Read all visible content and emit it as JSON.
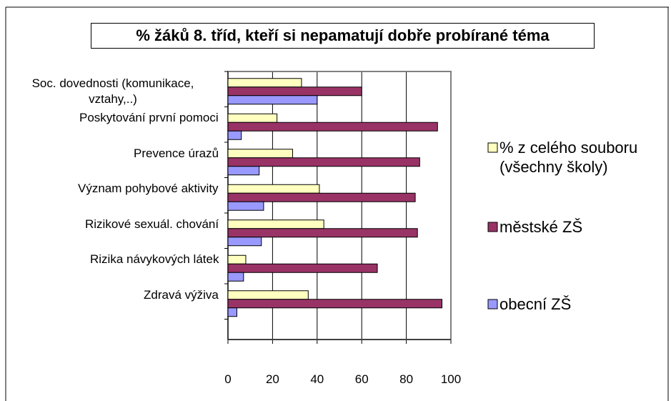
{
  "chart_data": {
    "type": "bar",
    "orientation": "horizontal",
    "title": "% žáků 8. tříd, kteří si nepamatují dobře probírané téma",
    "categories": [
      "Soc. dovednosti  (komunikace, vztahy,..)",
      "Poskytování první pomoci",
      "Prevence úrazů",
      "Význam pohybové aktivity",
      "Rizikové sexuál. chování",
      "Rizika návykových látek",
      "Zdravá výživa"
    ],
    "series": [
      {
        "name": "% z celého souboru (všechny školy)",
        "color": "#ffffc0",
        "values": [
          33,
          22,
          29,
          41,
          43,
          8,
          36
        ]
      },
      {
        "name": "městské ZŠ",
        "color": "#993366",
        "values": [
          60,
          94,
          86,
          84,
          85,
          67,
          96
        ]
      },
      {
        "name": "obecní ZŠ",
        "color": "#9999ff",
        "values": [
          40,
          6,
          14,
          16,
          15,
          7,
          4
        ]
      }
    ],
    "xlim": [
      0,
      100
    ],
    "xticks": [
      0,
      20,
      40,
      60,
      80,
      100
    ],
    "grid": true,
    "legend": "right"
  }
}
